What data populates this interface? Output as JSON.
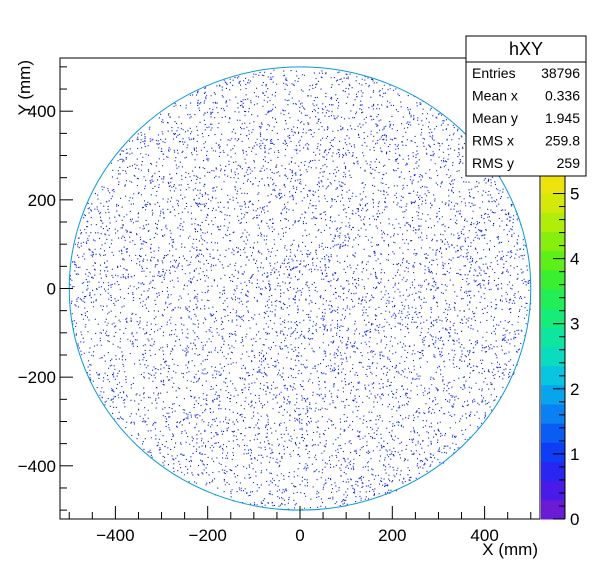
{
  "chart_data": {
    "type": "heatmap",
    "histogram_name": "hXY",
    "xlabel": "X (mm)",
    "ylabel": "Y (mm)",
    "xlim": [
      -520,
      520
    ],
    "ylim": [
      -520,
      520
    ],
    "x_ticks": [
      -400,
      -200,
      0,
      200,
      400
    ],
    "y_ticks": [
      -400,
      -200,
      0,
      200,
      400
    ],
    "x_tick_labels": [
      "−400",
      "−200",
      "0",
      "200",
      "400"
    ],
    "y_tick_labels": [
      "−400",
      "−200",
      "0",
      "200",
      "400"
    ],
    "distribution": {
      "shape": "uniform disk",
      "center": [
        0,
        0
      ],
      "radius": 500,
      "point_color": "#0a1fe0"
    },
    "stats": [
      {
        "label": "Entries",
        "value": "38796"
      },
      {
        "label": "Mean x",
        "value": "0.336"
      },
      {
        "label": "Mean y",
        "value": "1.945"
      },
      {
        "label": "RMS x",
        "value": "259.8"
      },
      {
        "label": "RMS y",
        "value": "259"
      }
    ],
    "z_axis": {
      "min": 0,
      "max": 5.3,
      "ticks": [
        0,
        1,
        2,
        3,
        4,
        5
      ],
      "tick_labels": [
        "0",
        "1",
        "2",
        "3",
        "4",
        "5"
      ],
      "palette": [
        "#6a1bd6",
        "#4a1be8",
        "#2a26f2",
        "#0f3df6",
        "#0a5cf5",
        "#0b80f2",
        "#09a4ee",
        "#08c6e0",
        "#0adcc0",
        "#0ee6a0",
        "#15ec7a",
        "#22ee55",
        "#38ef30",
        "#5cef18",
        "#86ef0e",
        "#b0ed0a",
        "#d4e80a",
        "#eee30c"
      ]
    },
    "grid": false
  }
}
